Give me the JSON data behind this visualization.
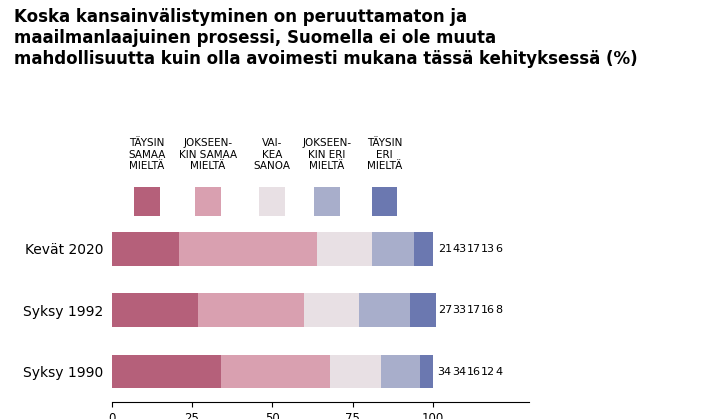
{
  "title": "Koska kansainvälistyminen on peruuttamaton ja\nmaailmanlaajuinen prosessi, Suomella ei ole muuta\nmahdollisuutta kuin olla avoimesti mukana tässä kehityksessä (%)",
  "rows": [
    "Kevät 2020",
    "Syksy 1992",
    "Syksy 1990"
  ],
  "categories": [
    "TÄYSIN\nSAMAA\nMIELTÄ",
    "JOKSEEN-\nKIN SAMAA\nMIELTÄ",
    "VAI-\nKEA\nSANOA",
    "JOKSEEN-\nKIN ERI\nMIELTÄ",
    "TÄYSIN\nERI\nMIELTÄ"
  ],
  "values": [
    [
      21,
      43,
      17,
      13,
      6
    ],
    [
      27,
      33,
      17,
      16,
      8
    ],
    [
      34,
      34,
      16,
      12,
      4
    ]
  ],
  "colors": [
    "#b5607a",
    "#d9a0b0",
    "#e8e0e4",
    "#a8aecb",
    "#6b78b0"
  ],
  "background_color": "#ffffff",
  "xlim": [
    0,
    130
  ],
  "bar_xlim": [
    0,
    100
  ],
  "title_fontsize": 12,
  "label_fontsize": 7.5,
  "bar_fontsize": 8,
  "ytick_fontsize": 10,
  "xtick_fontsize": 8.5
}
